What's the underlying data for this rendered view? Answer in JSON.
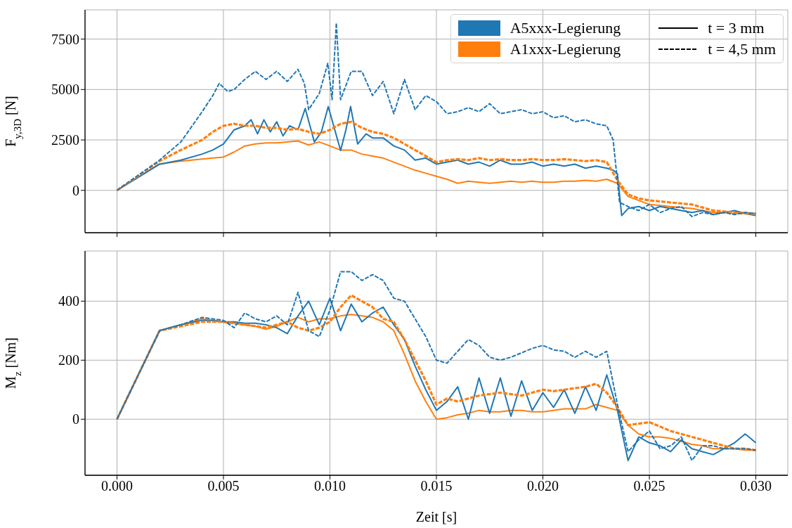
{
  "chart_data": [
    {
      "type": "line",
      "ylabel": "F$_{y,3D}$ [N]",
      "grid": true,
      "tick_labels": "y",
      "annotations": [
        "A5xxx-Legierung",
        "A1xxx-Legierung",
        "t = 3 mm",
        "t = 4,5 mm"
      ],
      "xlim": [
        -0.0015,
        0.0315
      ],
      "ylim": [
        -2100,
        8950
      ],
      "xticks": [
        {
          "value": 0,
          "label": null
        },
        {
          "value": 0.005,
          "label": null
        },
        {
          "value": 0.01,
          "label": null
        },
        {
          "value": 0.015,
          "label": null
        },
        {
          "value": 0.02,
          "label": null
        },
        {
          "value": 0.025,
          "label": null
        },
        {
          "value": 0.03,
          "label": null
        }
      ],
      "yticks": [
        0,
        2500,
        5000,
        7500
      ],
      "x": [
        0,
        0.002,
        0.003,
        0.004,
        0.0045,
        0.005,
        0.0055,
        0.006,
        0.0065,
        0.007,
        0.0075,
        0.008,
        0.0085,
        0.009,
        0.0095,
        0.01,
        0.0105,
        0.011,
        0.0115,
        0.012,
        0.0125,
        0.013,
        0.0135,
        0.014,
        0.0145,
        0.015,
        0.0155,
        0.016,
        0.0165,
        0.017,
        0.0175,
        0.018,
        0.0185,
        0.019,
        0.0195,
        0.02,
        0.0205,
        0.021,
        0.0215,
        0.022,
        0.0225,
        0.023,
        0.0235,
        0.024,
        0.0245,
        0.025,
        0.0255,
        0.026,
        0.0265,
        0.027,
        0.0275,
        0.028,
        0.0285,
        0.029,
        0.0295,
        0.03
      ],
      "series": [
        {
          "color": "#1f77b4",
          "line_style": "solid",
          "x": [
            0,
            0.002,
            0.003,
            0.004,
            0.0045,
            0.005,
            0.0055,
            0.006,
            0.0063,
            0.0066,
            0.0069,
            0.0072,
            0.0075,
            0.0078,
            0.0081,
            0.0085,
            0.00884,
            0.00927,
            0.0096,
            0.00992,
            0.0105,
            0.01075,
            0.01097,
            0.0113,
            0.0117,
            0.012,
            0.0125,
            0.013,
            0.0135,
            0.014,
            0.0145,
            0.015,
            0.0155,
            0.016,
            0.0165,
            0.017,
            0.0175,
            0.018,
            0.0185,
            0.019,
            0.0195,
            0.02,
            0.0205,
            0.021,
            0.0215,
            0.022,
            0.0225,
            0.023,
            0.0233,
            0.0235,
            0.0237,
            0.024,
            0.0245,
            0.025,
            0.0255,
            0.026,
            0.0265,
            0.027,
            0.0275,
            0.028,
            0.0285,
            0.029,
            0.0295,
            0.03
          ],
          "values": [
            0,
            1300,
            1500,
            1800,
            2000,
            2300,
            3000,
            3200,
            3500,
            2800,
            3500,
            2900,
            3400,
            2700,
            3200,
            3000,
            4060,
            2400,
            2900,
            4160,
            1980,
            3000,
            4160,
            2300,
            2800,
            2600,
            2600,
            2200,
            2000,
            1500,
            1600,
            1300,
            1400,
            1500,
            1300,
            1400,
            1200,
            1500,
            1300,
            1300,
            1400,
            1200,
            1300,
            1200,
            1300,
            1100,
            1200,
            1100,
            1000,
            830,
            -1250,
            -900,
            -800,
            -1000,
            -800,
            -900,
            -1000,
            -1100,
            -1000,
            -1200,
            -1100,
            -1000,
            -1150,
            -1250
          ]
        },
        {
          "color": "#ff7f0e",
          "line_style": "solid",
          "values": [
            0,
            1300,
            1450,
            1550,
            1600,
            1650,
            1900,
            2200,
            2300,
            2350,
            2350,
            2400,
            2450,
            2250,
            2400,
            2200,
            2000,
            2000,
            1800,
            1700,
            1600,
            1400,
            1200,
            1000,
            850,
            700,
            550,
            350,
            450,
            400,
            350,
            400,
            450,
            400,
            450,
            400,
            400,
            450,
            450,
            500,
            450,
            550,
            350,
            -300,
            -500,
            -700,
            -750,
            -800,
            -850,
            -900,
            -1000,
            -1100,
            -1100,
            -1150,
            -1100,
            -1150
          ]
        },
        {
          "color": "#1f77b4",
          "line_style": "dashed",
          "x": [
            0,
            0.002,
            0.003,
            0.004,
            0.0045,
            0.0048,
            0.0052,
            0.0055,
            0.006,
            0.0065,
            0.007,
            0.0075,
            0.008,
            0.0085,
            0.0088,
            0.009,
            0.0095,
            0.0099,
            0.0101,
            0.0103,
            0.0105,
            0.011,
            0.0115,
            0.012,
            0.0125,
            0.013,
            0.0135,
            0.014,
            0.0145,
            0.015,
            0.0155,
            0.016,
            0.0165,
            0.017,
            0.0175,
            0.018,
            0.0185,
            0.019,
            0.0195,
            0.02,
            0.0205,
            0.021,
            0.0215,
            0.022,
            0.0225,
            0.023,
            0.0233,
            0.0236,
            0.024,
            0.0245,
            0.025,
            0.0255,
            0.026,
            0.0265,
            0.027,
            0.0275,
            0.028,
            0.0285,
            0.029,
            0.0295,
            0.03
          ],
          "values": [
            0,
            1500,
            2400,
            3900,
            4700,
            5300,
            4900,
            5000,
            5500,
            5900,
            5500,
            5900,
            5400,
            6000,
            5300,
            4000,
            4800,
            6300,
            4500,
            8300,
            4500,
            5900,
            5900,
            4700,
            5400,
            3800,
            5500,
            4000,
            4700,
            4400,
            3800,
            3900,
            4100,
            3900,
            4300,
            3800,
            3900,
            4000,
            3800,
            3900,
            3600,
            3700,
            3400,
            3500,
            3300,
            3200,
            2500,
            -600,
            -800,
            -1000,
            -700,
            -1100,
            -900,
            -800,
            -1300,
            -1100,
            -1200,
            -1100,
            -1200,
            -1100,
            -1150
          ]
        },
        {
          "color": "#ff7f0e",
          "line_style": "dashed",
          "values": [
            0,
            1450,
            2000,
            2500,
            2900,
            3200,
            3300,
            3200,
            3200,
            3100,
            3100,
            3000,
            3050,
            2900,
            2800,
            3000,
            3300,
            3400,
            3100,
            2900,
            2800,
            2600,
            2300,
            2000,
            1700,
            1400,
            1500,
            1550,
            1500,
            1600,
            1500,
            1550,
            1500,
            1500,
            1550,
            1500,
            1500,
            1550,
            1500,
            1450,
            1500,
            1400,
            500,
            -200,
            -400,
            -500,
            -550,
            -600,
            -650,
            -700,
            -850,
            -1000,
            -1050,
            -1100,
            -1150,
            -1150
          ]
        }
      ]
    },
    {
      "type": "line",
      "ylabel": "M$_{z}$ [Nm]",
      "xlabel": "Zeit [s]",
      "grid": true,
      "xlim": [
        -0.0015,
        0.0315
      ],
      "ylim": [
        -190,
        570
      ],
      "xticks": [
        {
          "value": 0,
          "label": "0.000"
        },
        {
          "value": 0.005,
          "label": "0.005"
        },
        {
          "value": 0.01,
          "label": "0.010"
        },
        {
          "value": 0.015,
          "label": "0.015"
        },
        {
          "value": 0.02,
          "label": "0.020"
        },
        {
          "value": 0.025,
          "label": "0.025"
        },
        {
          "value": 0.03,
          "label": "0.030"
        }
      ],
      "yticks": [
        0,
        200,
        400
      ],
      "x": [
        0,
        0.002,
        0.003,
        0.004,
        0.0045,
        0.005,
        0.0055,
        0.006,
        0.0065,
        0.007,
        0.0075,
        0.008,
        0.0085,
        0.009,
        0.0095,
        0.01,
        0.0105,
        0.011,
        0.0115,
        0.012,
        0.0125,
        0.013,
        0.0135,
        0.014,
        0.0145,
        0.015,
        0.0155,
        0.016,
        0.0165,
        0.017,
        0.0175,
        0.018,
        0.0185,
        0.019,
        0.0195,
        0.02,
        0.0205,
        0.021,
        0.0215,
        0.022,
        0.0225,
        0.023,
        0.0235,
        0.024,
        0.0245,
        0.025,
        0.0255,
        0.026,
        0.0265,
        0.027,
        0.0275,
        0.028,
        0.0285,
        0.029,
        0.0295,
        0.03
      ],
      "series": [
        {
          "color": "#1f77b4",
          "line_style": "solid",
          "values": [
            0,
            300,
            320,
            335,
            335,
            330,
            330,
            325,
            325,
            320,
            310,
            290,
            350,
            400,
            320,
            410,
            300,
            390,
            330,
            360,
            380,
            320,
            270,
            180,
            100,
            30,
            60,
            110,
            0,
            140,
            20,
            140,
            10,
            130,
            30,
            90,
            40,
            100,
            20,
            110,
            30,
            150,
            30,
            -140,
            -60,
            -80,
            -90,
            -110,
            -70,
            -100,
            -110,
            -120,
            -100,
            -80,
            -50,
            -80
          ]
        },
        {
          "color": "#ff7f0e",
          "line_style": "solid",
          "values": [
            0,
            300,
            320,
            340,
            335,
            330,
            325,
            320,
            315,
            305,
            315,
            330,
            345,
            330,
            340,
            340,
            350,
            355,
            350,
            345,
            330,
            300,
            220,
            130,
            60,
            0,
            5,
            15,
            20,
            30,
            25,
            25,
            30,
            30,
            25,
            25,
            30,
            35,
            35,
            35,
            50,
            40,
            30,
            -20,
            -50,
            -60,
            -60,
            -65,
            -75,
            -85,
            -90,
            -100,
            -100,
            -100,
            -105,
            -105
          ]
        },
        {
          "color": "#1f77b4",
          "line_style": "dashed",
          "values": [
            0,
            300,
            320,
            345,
            340,
            335,
            310,
            360,
            340,
            330,
            350,
            320,
            430,
            300,
            280,
            370,
            500,
            500,
            470,
            490,
            470,
            410,
            400,
            340,
            280,
            200,
            190,
            230,
            270,
            250,
            210,
            200,
            210,
            225,
            240,
            250,
            235,
            230,
            210,
            230,
            210,
            230,
            50,
            -110,
            -70,
            -40,
            -100,
            -90,
            -60,
            -140,
            -90,
            -90,
            -100,
            -100,
            -100,
            -105
          ]
        },
        {
          "color": "#ff7f0e",
          "line_style": "dashed",
          "values": [
            0,
            300,
            315,
            330,
            330,
            330,
            325,
            320,
            315,
            310,
            320,
            330,
            310,
            300,
            310,
            330,
            380,
            420,
            400,
            380,
            340,
            330,
            270,
            200,
            130,
            50,
            70,
            60,
            70,
            80,
            85,
            90,
            85,
            80,
            90,
            100,
            95,
            100,
            105,
            110,
            120,
            90,
            40,
            -20,
            -15,
            -10,
            -25,
            -40,
            -50,
            -60,
            -70,
            -80,
            -90,
            -100,
            -100,
            -105
          ]
        }
      ]
    }
  ]
}
